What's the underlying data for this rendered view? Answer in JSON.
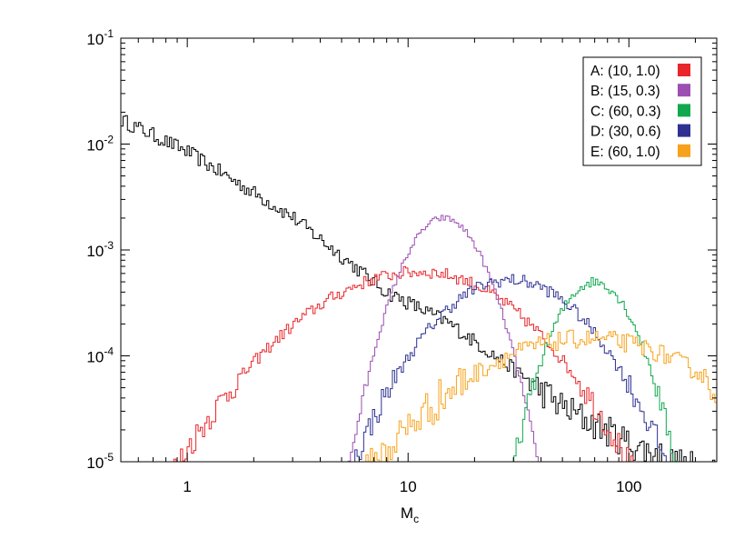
{
  "chart_data": {
    "type": "histogram",
    "xlabel": "M",
    "xlabel_sub": "c",
    "ylabel": "",
    "x_scale": "log",
    "y_scale": "log",
    "xlim": [
      0.5,
      250
    ],
    "ylim": [
      1e-05,
      0.1
    ],
    "x_ticks": [
      {
        "value": 1,
        "label": "1"
      },
      {
        "value": 10,
        "label": "10"
      },
      {
        "value": 100,
        "label": "100"
      }
    ],
    "y_ticks": [
      {
        "value": 1e-05,
        "base": "10",
        "exp": "-5"
      },
      {
        "value": 0.0001,
        "base": "10",
        "exp": "-4"
      },
      {
        "value": 0.001,
        "base": "10",
        "exp": "-3"
      },
      {
        "value": 0.01,
        "base": "10",
        "exp": "-2"
      },
      {
        "value": 0.1,
        "base": "10",
        "exp": "-1"
      }
    ],
    "grid": false,
    "legend_position": "top-right",
    "series": [
      {
        "name": "",
        "color": "#000000",
        "shape": "powerlaw",
        "xmin": 0.5,
        "xmax": 250,
        "anchors": [
          [
            0.5,
            0.017
          ],
          [
            1,
            0.0085
          ],
          [
            3,
            0.00205
          ],
          [
            8,
            0.0004
          ],
          [
            15,
            0.00021
          ],
          [
            30,
            7.5e-05
          ],
          [
            50,
            3.3e-05
          ],
          [
            100,
            1.5e-05
          ],
          [
            180,
            9e-06
          ]
        ],
        "noise": 0.07
      },
      {
        "name": "A: (10, 1.0)",
        "color": "#e8262b",
        "shape": "lognormal",
        "peak_x": 11.5,
        "peak_y": 0.00062,
        "sigma_left": 0.88,
        "sigma_right": 0.75,
        "xmin": 0.8,
        "xmax": 200,
        "noise": 0.06
      },
      {
        "name": "B: (15, 0.3)",
        "color": "#9b4fb2",
        "shape": "lognormal",
        "peak_x": 14.5,
        "peak_y": 0.002,
        "sigma_left": 0.3,
        "sigma_right": 0.3,
        "xmin": 5,
        "xmax": 50,
        "noise": 0.03
      },
      {
        "name": "C: (60, 0.3)",
        "color": "#10a84e",
        "shape": "lognormal",
        "peak_x": 70,
        "peak_y": 0.0005,
        "sigma_left": 0.3,
        "sigma_right": 0.3,
        "xmin": 25,
        "xmax": 200,
        "noise": 0.05
      },
      {
        "name": "D: (30, 0.6)",
        "color": "#2e3192",
        "shape": "lognormal",
        "peak_x": 29,
        "peak_y": 0.00052,
        "sigma_left": 0.58,
        "sigma_right": 0.58,
        "xmin": 4,
        "xmax": 250,
        "noise": 0.06
      },
      {
        "name": "E: (60, 1.0)",
        "color": "#f7a21b",
        "shape": "lognormal",
        "peak_x": 65,
        "peak_y": 0.000145,
        "sigma_left": 0.95,
        "sigma_right": 0.95,
        "xmin": 2,
        "xmax": 250,
        "noise": 0.09
      }
    ]
  }
}
